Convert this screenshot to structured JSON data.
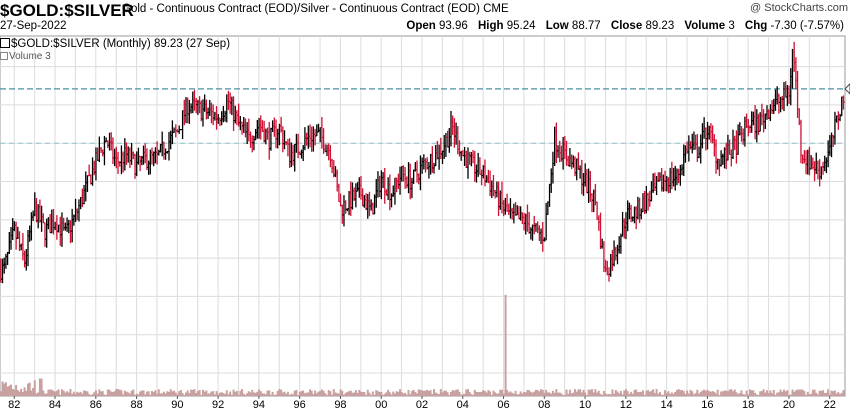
{
  "header": {
    "ticker": "$GOLD:$SILVER",
    "description": "Gold - Continuous Contract (EOD)/Silver - Continuous Contract (EOD) CME",
    "watermark": "@ StockCharts.com",
    "date": "27-Sep-2022",
    "quote": {
      "open_label": "Open",
      "open": "93.96",
      "high_label": "High",
      "high": "95.24",
      "low_label": "Low",
      "low": "88.77",
      "close_label": "Close",
      "close": "89.23",
      "volume_label": "Volume",
      "volume": "3",
      "chg_label": "Chg",
      "chg": "-7.30 (-7.57%)"
    }
  },
  "legend": {
    "main": "$GOLD:$SILVER (Monthly) 89.23 (27 Sep)",
    "volume": "Volume 3"
  },
  "colors": {
    "up": "#000000",
    "down": "#cc1133",
    "grid": "#dcdcdc",
    "ref_line": "#4a90a4",
    "ref_line_light": "#8fc4d0",
    "volume_bar": "#c9a0a0"
  },
  "chart_data": {
    "type": "bar",
    "subtype": "monthly OHLC price bars with volume",
    "x_range": [
      1981.3,
      2022.75
    ],
    "x_tick_labels": [
      "82",
      "84",
      "86",
      "88",
      "90",
      "92",
      "94",
      "96",
      "98",
      "00",
      "02",
      "04",
      "06",
      "08",
      "10",
      "12",
      "14",
      "16",
      "18",
      "20",
      "22"
    ],
    "y_range": [
      9,
      103
    ],
    "horizontal_reference_lines": [
      89.2,
      75
    ],
    "grid": true,
    "price_anchors": [
      [
        1981.5,
        42
      ],
      [
        1982.0,
        52
      ],
      [
        1982.5,
        44
      ],
      [
        1983.0,
        58
      ],
      [
        1983.5,
        52
      ],
      [
        1984.0,
        55
      ],
      [
        1984.5,
        51
      ],
      [
        1985.0,
        56
      ],
      [
        1985.5,
        63
      ],
      [
        1986.0,
        70
      ],
      [
        1986.5,
        76
      ],
      [
        1987.0,
        70
      ],
      [
        1987.5,
        72
      ],
      [
        1988.0,
        69
      ],
      [
        1988.5,
        71
      ],
      [
        1989.0,
        71
      ],
      [
        1989.5,
        75
      ],
      [
        1990.0,
        78
      ],
      [
        1990.5,
        85
      ],
      [
        1991.0,
        84
      ],
      [
        1991.5,
        83
      ],
      [
        1992.0,
        82
      ],
      [
        1992.5,
        86
      ],
      [
        1993.0,
        80
      ],
      [
        1993.5,
        76
      ],
      [
        1994.0,
        80
      ],
      [
        1994.5,
        76
      ],
      [
        1995.0,
        79
      ],
      [
        1995.5,
        72
      ],
      [
        1996.0,
        74
      ],
      [
        1996.5,
        77
      ],
      [
        1997.0,
        77
      ],
      [
        1997.5,
        73
      ],
      [
        1998.0,
        58
      ],
      [
        1998.5,
        60
      ],
      [
        1999.0,
        62
      ],
      [
        1999.5,
        57
      ],
      [
        2000.0,
        66
      ],
      [
        2000.5,
        62
      ],
      [
        2001.0,
        67
      ],
      [
        2001.5,
        65
      ],
      [
        2002.0,
        69
      ],
      [
        2002.5,
        71
      ],
      [
        2003.0,
        74
      ],
      [
        2003.5,
        79
      ],
      [
        2004.0,
        72
      ],
      [
        2004.5,
        69
      ],
      [
        2005.0,
        67
      ],
      [
        2005.5,
        63
      ],
      [
        2006.0,
        58
      ],
      [
        2006.5,
        55
      ],
      [
        2007.0,
        55
      ],
      [
        2007.5,
        52
      ],
      [
        2008.0,
        51
      ],
      [
        2008.5,
        76
      ],
      [
        2009.0,
        72
      ],
      [
        2009.5,
        69
      ],
      [
        2010.0,
        65
      ],
      [
        2010.5,
        60
      ],
      [
        2011.0,
        41
      ],
      [
        2011.5,
        47
      ],
      [
        2012.0,
        56
      ],
      [
        2012.5,
        57
      ],
      [
        2013.0,
        60
      ],
      [
        2013.5,
        63
      ],
      [
        2014.0,
        66
      ],
      [
        2014.5,
        66
      ],
      [
        2015.0,
        74
      ],
      [
        2015.5,
        73
      ],
      [
        2016.0,
        79
      ],
      [
        2016.5,
        71
      ],
      [
        2017.0,
        72
      ],
      [
        2017.5,
        75
      ],
      [
        2018.0,
        80
      ],
      [
        2018.5,
        80
      ],
      [
        2019.0,
        84
      ],
      [
        2019.5,
        86
      ],
      [
        2020.0,
        88
      ],
      [
        2020.2,
        100
      ],
      [
        2020.6,
        73
      ],
      [
        2021.0,
        70
      ],
      [
        2021.5,
        68
      ],
      [
        2022.0,
        73
      ],
      [
        2022.5,
        84
      ],
      [
        2022.75,
        89
      ]
    ],
    "volume_spikes": [
      [
        2006.1,
        44
      ]
    ],
    "volume_baseline_max": 6
  }
}
